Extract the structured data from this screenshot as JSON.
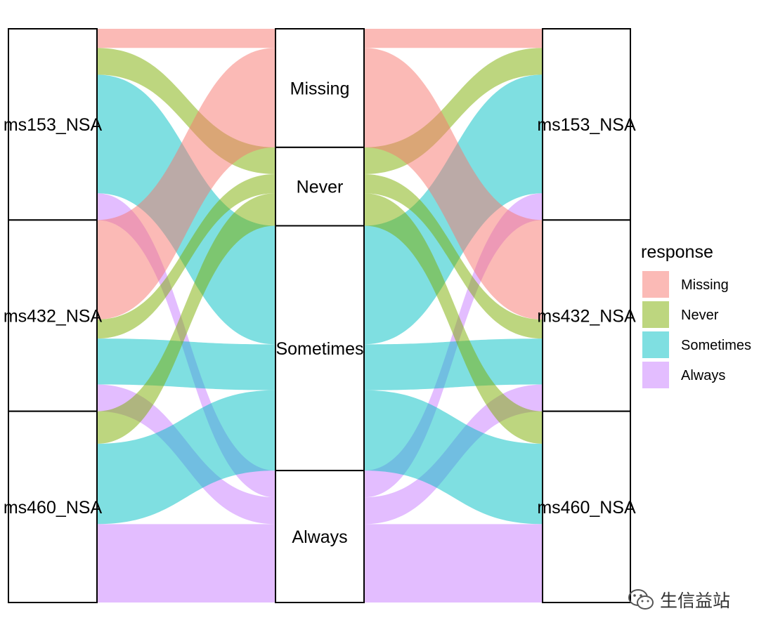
{
  "chart_data": {
    "type": "alluvial",
    "axes": [
      {
        "strata": [
          "ms153_NSA",
          "ms432_NSA",
          "ms460_NSA"
        ]
      },
      {
        "strata": [
          "Missing",
          "Never",
          "Sometimes",
          "Always"
        ]
      },
      {
        "strata": [
          "ms153_NSA",
          "ms432_NSA",
          "ms460_NSA"
        ]
      }
    ],
    "flows": [
      {
        "from": "ms153_NSA",
        "to": "Missing",
        "response": "Missing",
        "value": 10
      },
      {
        "from": "ms153_NSA",
        "to": "Never",
        "response": "Never",
        "value": 14
      },
      {
        "from": "ms153_NSA",
        "to": "Sometimes",
        "response": "Sometimes",
        "value": 62
      },
      {
        "from": "ms153_NSA",
        "to": "Always",
        "response": "Always",
        "value": 14
      },
      {
        "from": "ms432_NSA",
        "to": "Missing",
        "response": "Missing",
        "value": 52
      },
      {
        "from": "ms432_NSA",
        "to": "Never",
        "response": "Never",
        "value": 10
      },
      {
        "from": "ms432_NSA",
        "to": "Sometimes",
        "response": "Sometimes",
        "value": 24
      },
      {
        "from": "ms432_NSA",
        "to": "Always",
        "response": "Always",
        "value": 14
      },
      {
        "from": "ms460_NSA",
        "to": "Never",
        "response": "Never",
        "value": 17
      },
      {
        "from": "ms460_NSA",
        "to": "Sometimes",
        "response": "Sometimes",
        "value": 42
      },
      {
        "from": "ms460_NSA",
        "to": "Always",
        "response": "Always",
        "value": 41
      }
    ],
    "legend": {
      "title": "response",
      "placement": "right",
      "items": [
        {
          "label": "Missing",
          "color": "#f8766d"
        },
        {
          "label": "Never",
          "color": "#7cae00"
        },
        {
          "label": "Sometimes",
          "color": "#00bfc4"
        },
        {
          "label": "Always",
          "color": "#c77cff"
        }
      ]
    }
  },
  "watermark": {
    "text": "生信益站",
    "icon": "wechat-icon"
  }
}
